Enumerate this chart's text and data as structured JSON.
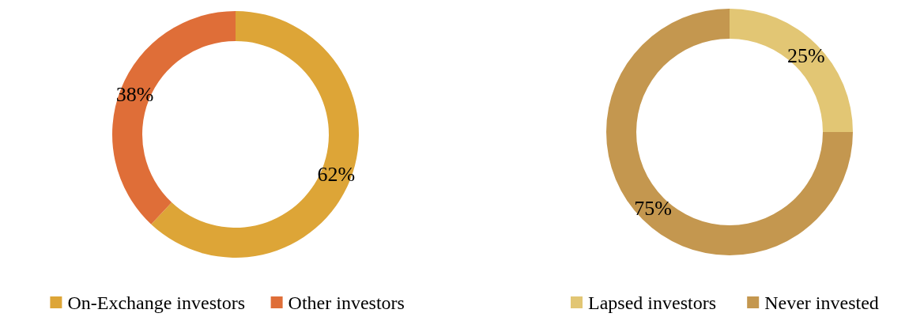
{
  "chart_data": [
    {
      "type": "donut",
      "categories": [
        "On-Exchange investors",
        "Other investors"
      ],
      "values": [
        62,
        38
      ],
      "colors": [
        "#dda537",
        "#df6e38"
      ],
      "value_labels": [
        "62%",
        "38%"
      ],
      "legend": "bottom"
    },
    {
      "type": "donut",
      "categories": [
        "Lapsed investors",
        "Never invested"
      ],
      "values": [
        25,
        75
      ],
      "colors": [
        "#e2c674",
        "#c4974f"
      ],
      "value_labels": [
        "25%",
        "75%"
      ],
      "legend": "bottom"
    }
  ]
}
